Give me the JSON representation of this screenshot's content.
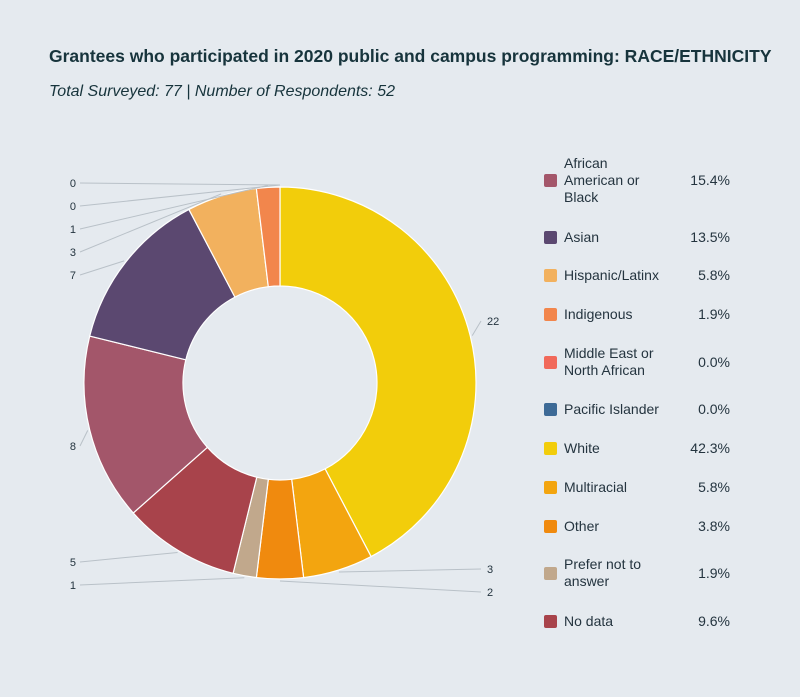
{
  "header": {
    "title": "Grantees who participated in 2020 public and campus programming: RACE/ETHNICITY",
    "subtitle": "Total Surveyed: 77 | Number of Respondents: 52"
  },
  "chart_data": {
    "type": "pie",
    "variant": "donut",
    "categories": [
      "White",
      "Multiracial",
      "Other",
      "Prefer not to answer",
      "No data",
      "African American or Black",
      "Asian",
      "Hispanic/Latinx",
      "Indigenous",
      "Middle East or North African",
      "Pacific Islander"
    ],
    "values": [
      22,
      3,
      2,
      1,
      5,
      8,
      7,
      3,
      1,
      0,
      0
    ],
    "colors": [
      "#f2cd0b",
      "#f3a50f",
      "#f08a0e",
      "#c1a88c",
      "#a8434b",
      "#a3566a",
      "#5b4870",
      "#f2b15e",
      "#f2864c",
      "#f1695a",
      "#3d6a96"
    ],
    "legend": [
      {
        "label": "African American or Black",
        "pct": "15.4%",
        "color": "#a3566a"
      },
      {
        "label": "Asian",
        "pct": "13.5%",
        "color": "#5b4870"
      },
      {
        "label": "Hispanic/Latinx",
        "pct": "5.8%",
        "color": "#f2b15e"
      },
      {
        "label": "Indigenous",
        "pct": "1.9%",
        "color": "#f2864c"
      },
      {
        "label": "Middle East or North African",
        "pct": "0.0%",
        "color": "#f1695a"
      },
      {
        "label": "Pacific Islander",
        "pct": "0.0%",
        "color": "#3d6a96"
      },
      {
        "label": "White",
        "pct": "42.3%",
        "color": "#f2cd0b"
      },
      {
        "label": "Multiracial",
        "pct": "5.8%",
        "color": "#f3a50f"
      },
      {
        "label": "Other",
        "pct": "3.8%",
        "color": "#f08a0e"
      },
      {
        "label": "Prefer not to answer",
        "pct": "1.9%",
        "color": "#c1a88c"
      },
      {
        "label": "No data",
        "pct": "9.6%",
        "color": "#a8434b"
      }
    ],
    "legend_position": "right"
  }
}
